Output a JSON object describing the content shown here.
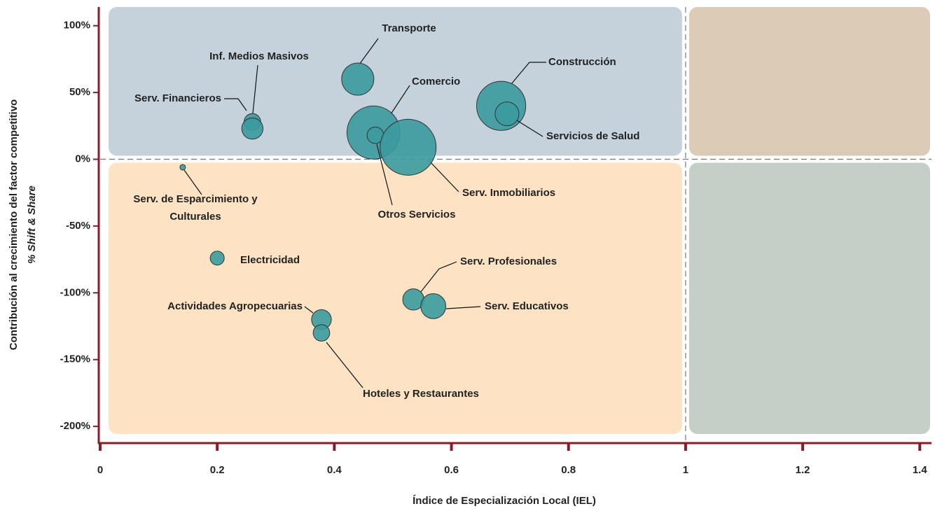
{
  "chart_data": {
    "type": "bubble",
    "xlabel": "Índice de Especialización Local (IEL)",
    "ylabel": [
      "Contribución al crecimiento del factor competitivo",
      "% Shift & Share"
    ],
    "xlim": [
      0,
      1.42
    ],
    "xticks": [
      0,
      0.2,
      0.4,
      0.6,
      0.8,
      1,
      1.2,
      1.4
    ],
    "ylim": [
      -212,
      114
    ],
    "yticks": [
      {
        "value": 100,
        "label": "100%"
      },
      {
        "value": 50,
        "label": "50%"
      },
      {
        "value": 0,
        "label": "0%"
      },
      {
        "value": -50,
        "label": "-50%"
      },
      {
        "value": -100,
        "label": "-100%"
      },
      {
        "value": -150,
        "label": "-150%"
      },
      {
        "value": -200,
        "label": "-200%"
      }
    ],
    "color": "#3a9a9e",
    "quadrant_colors": [
      "#c5d2dc",
      "#dccbb6",
      "#fde3c3",
      "#c4d0c7"
    ],
    "series": [
      {
        "name": null,
        "labels": [
          "Transporte",
          "Inf. Medios Masivos",
          "Serv. Financieros",
          "Comercio",
          "Otros Servicios",
          "Serv. Inmobiliarios",
          "Construcción",
          "Servicios de Salud",
          "Serv. de Esparcimiento y Culturales",
          "Electricidad",
          "Serv. Profesionales",
          "Serv. Educativos",
          "Actividades Agropecuarias",
          "Hoteles y Restaurantes"
        ],
        "x": [
          0.44,
          0.26,
          0.26,
          0.467,
          0.47,
          0.526,
          0.685,
          0.695,
          0.141,
          0.2,
          0.535,
          0.569,
          0.378,
          0.378
        ],
        "values": [
          60,
          28,
          23,
          20,
          18,
          9,
          40,
          34,
          -6,
          -74,
          -105,
          -110,
          -120,
          -130
        ],
        "sizes": [
          5.3,
          1.4,
          2.3,
          14.4,
          1.4,
          16,
          12.3,
          2.9,
          0.16,
          1,
          2.3,
          3.2,
          2,
          1.4
        ]
      }
    ]
  }
}
